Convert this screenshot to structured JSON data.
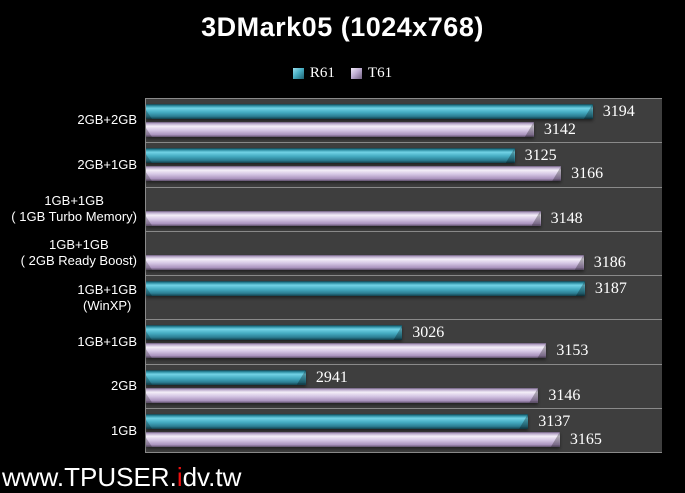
{
  "page": {
    "background": "#000000"
  },
  "watermark": {
    "prefix": "www.TPUSER.",
    "highlight": "i",
    "suffix": "dv.tw",
    "highlight_color": "#ee1111",
    "text_color": "#ffffff"
  },
  "chart_data": {
    "type": "bar",
    "orientation": "horizontal",
    "title": "3DMark05 (1024x768)",
    "categories": [
      "2GB+2GB",
      "2GB+1GB",
      "1GB+1GB ( 1GB Turbo Memory)",
      "1GB+1GB ( 2GB Ready Boost)",
      "1GB+1GB (WinXP)",
      "1GB+1GB",
      "2GB",
      "1GB"
    ],
    "category_lines": [
      [
        "2GB+2GB"
      ],
      [
        "2GB+1GB"
      ],
      [
        "1GB+1GB",
        "( 1GB Turbo Memory)"
      ],
      [
        "1GB+1GB",
        "( 2GB Ready Boost)"
      ],
      [
        "1GB+1GB",
        "(WinXP)"
      ],
      [
        "1GB+1GB"
      ],
      [
        "2GB"
      ],
      [
        "1GB"
      ]
    ],
    "series": [
      {
        "name": "R61",
        "color": "#45acc2",
        "values": [
          3194,
          3125,
          null,
          null,
          3187,
          3026,
          2941,
          3137
        ]
      },
      {
        "name": "T61",
        "color": "#cdbcde",
        "values": [
          3142,
          3166,
          3148,
          3186,
          null,
          3153,
          3146,
          3165
        ]
      }
    ],
    "xlim": [
      2800,
      3255
    ],
    "grid": false,
    "legend_position": "top-center",
    "value_labels": true,
    "plot_background": "#3e3e3e",
    "band_separator_color": "#8a8a8a",
    "page_background": "#000000",
    "text_color": "#ffffff"
  }
}
